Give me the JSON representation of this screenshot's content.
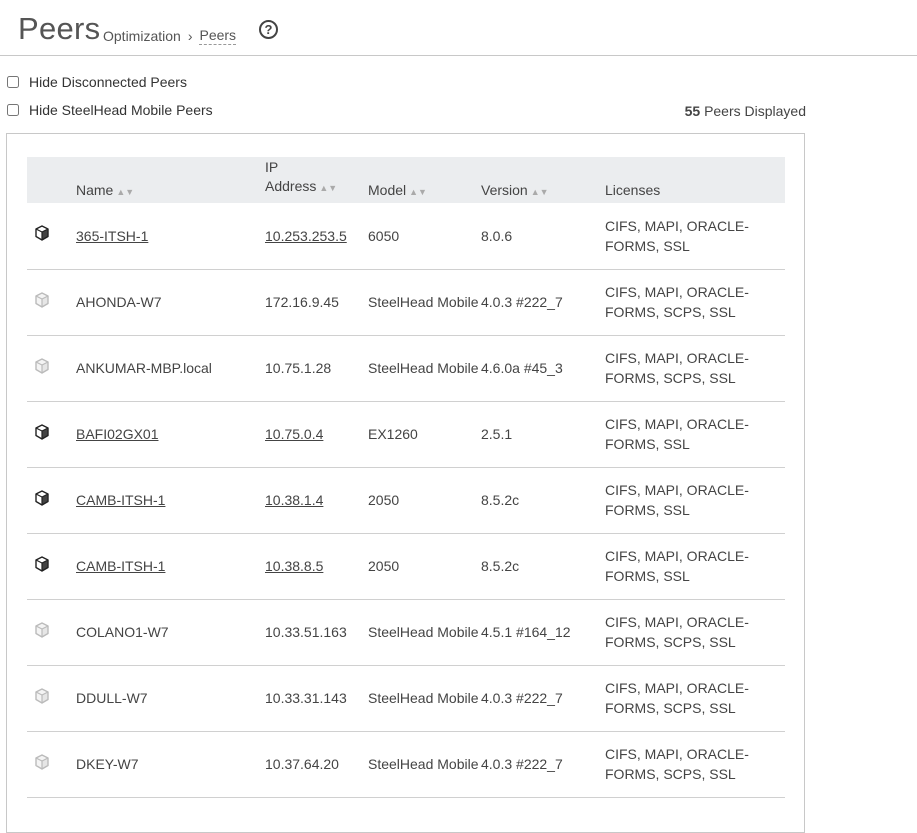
{
  "header": {
    "title": "Peers",
    "breadcrumb": [
      "Optimization",
      "Peers"
    ],
    "breadcrumb_separator": "›",
    "help_glyph": "?"
  },
  "options": {
    "hide_disconnected_label": "Hide Disconnected Peers",
    "hide_mobile_label": "Hide SteelHead Mobile Peers",
    "peer_count": "55",
    "peer_count_suffix": "Peers Displayed"
  },
  "table": {
    "columns": [
      "Name",
      "IP Address",
      "Model",
      "Version",
      "Licenses"
    ],
    "rows": [
      {
        "connected": true,
        "name": "365-ITSH-1",
        "ip": "10.253.253.5",
        "model": "6050",
        "version": "8.0.6",
        "licenses": "CIFS, MAPI, ORACLE-FORMS, SSL"
      },
      {
        "connected": false,
        "name": "AHONDA-W7",
        "ip": "172.16.9.45",
        "model": "SteelHead Mobile",
        "version": "4.0.3 #222_7",
        "licenses": "CIFS, MAPI, ORACLE-FORMS, SCPS, SSL"
      },
      {
        "connected": false,
        "name": "ANKUMAR-MBP.local",
        "ip": "10.75.1.28",
        "model": "SteelHead Mobile",
        "version": "4.6.0a #45_3",
        "licenses": "CIFS, MAPI, ORACLE-FORMS, SCPS, SSL"
      },
      {
        "connected": true,
        "name": "BAFI02GX01",
        "ip": "10.75.0.4",
        "model": "EX1260",
        "version": "2.5.1",
        "licenses": "CIFS, MAPI, ORACLE-FORMS, SSL"
      },
      {
        "connected": true,
        "name": "CAMB-ITSH-1",
        "ip": "10.38.1.4",
        "model": "2050",
        "version": "8.5.2c",
        "licenses": "CIFS, MAPI, ORACLE-FORMS, SSL"
      },
      {
        "connected": true,
        "name": "CAMB-ITSH-1",
        "ip": "10.38.8.5",
        "model": "2050",
        "version": "8.5.2c",
        "licenses": "CIFS, MAPI, ORACLE-FORMS, SSL"
      },
      {
        "connected": false,
        "name": "COLANO1-W7",
        "ip": "10.33.51.163",
        "model": "SteelHead Mobile",
        "version": "4.5.1 #164_12",
        "licenses": "CIFS, MAPI, ORACLE-FORMS, SCPS, SSL"
      },
      {
        "connected": false,
        "name": "DDULL-W7",
        "ip": "10.33.31.143",
        "model": "SteelHead Mobile",
        "version": "4.0.3 #222_7",
        "licenses": "CIFS, MAPI, ORACLE-FORMS, SCPS, SSL"
      },
      {
        "connected": false,
        "name": "DKEY-W7",
        "ip": "10.37.64.20",
        "model": "SteelHead Mobile",
        "version": "4.0.3 #222_7",
        "licenses": "CIFS, MAPI, ORACLE-FORMS, SCPS, SSL"
      }
    ]
  },
  "icons": {
    "connected_color": "#222222",
    "disconnected_color": "#bbbbbb"
  }
}
